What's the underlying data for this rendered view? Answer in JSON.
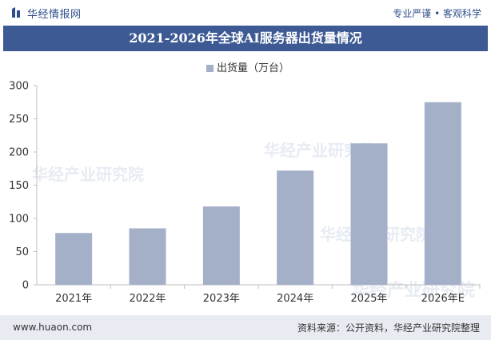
{
  "header": {
    "logo_text": "华经情报网",
    "tagline": "专业严谨 • 客观科学"
  },
  "chart_data": {
    "type": "bar",
    "title": "2021-2026年全球AI服务器出货量情况",
    "categories": [
      "2021年",
      "2022年",
      "2023年",
      "2024年",
      "2025年",
      "2026年E"
    ],
    "series": [
      {
        "name": "出货量（万台）",
        "values": [
          78,
          85,
          118,
          172,
          213,
          275
        ],
        "color": "#a4afc8"
      }
    ],
    "yticks": [
      0,
      50,
      100,
      150,
      200,
      250,
      300
    ],
    "ylim": [
      0,
      300
    ],
    "grid": false,
    "legend": "top-center"
  },
  "footer": {
    "site": "www.huaon.com",
    "source": "资料来源：公开资料，华经产业研究院整理"
  },
  "watermark": {
    "text": "华经产业研究院"
  }
}
